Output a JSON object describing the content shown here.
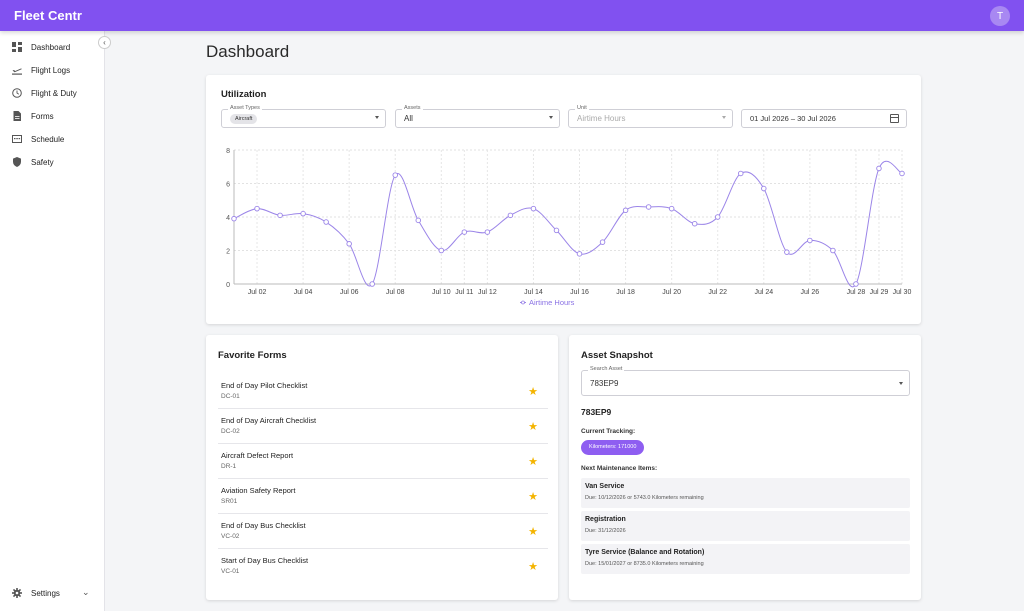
{
  "app": {
    "title": "Fleet Centr",
    "user_initial": "T"
  },
  "sidebar": {
    "items": [
      {
        "label": "Dashboard",
        "icon": "dashboard-icon"
      },
      {
        "label": "Flight Logs",
        "icon": "flight-takeoff-icon"
      },
      {
        "label": "Flight & Duty",
        "icon": "clock-icon"
      },
      {
        "label": "Forms",
        "icon": "document-icon"
      },
      {
        "label": "Schedule",
        "icon": "calendar-week-icon"
      },
      {
        "label": "Safety",
        "icon": "shield-icon"
      }
    ],
    "settings_label": "Settings",
    "collapse_symbol": "‹",
    "settings_chevron": "⌄"
  },
  "page": {
    "title": "Dashboard"
  },
  "utilization": {
    "title": "Utilization",
    "asset_types": {
      "label": "Asset Types",
      "chip": "Aircraft"
    },
    "assets": {
      "label": "Assets",
      "value": "All"
    },
    "unit": {
      "label": "Unit",
      "value": "Airtime Hours"
    },
    "date_range": "01 Jul 2026 – 30 Jul 2026"
  },
  "chart_data": {
    "type": "line",
    "x": [
      1,
      2,
      3,
      4,
      5,
      6,
      7,
      8,
      9,
      10,
      11,
      12,
      13,
      14,
      15,
      16,
      17,
      18,
      19,
      20,
      21,
      22,
      23,
      24,
      25,
      26,
      27,
      28,
      29,
      30
    ],
    "series": [
      {
        "name": "Airtime Hours",
        "values": [
          3.9,
          4.5,
          4.1,
          4.2,
          3.7,
          2.4,
          0,
          6.5,
          3.8,
          2.0,
          3.1,
          3.1,
          4.1,
          4.5,
          3.2,
          1.8,
          2.5,
          4.4,
          4.6,
          4.5,
          3.6,
          4.0,
          6.6,
          5.7,
          1.9,
          2.6,
          2.0,
          0,
          6.9,
          6.6
        ]
      }
    ],
    "tick_labels": [
      {
        "x": 2,
        "label": "Jul 02"
      },
      {
        "x": 4,
        "label": "Jul 04"
      },
      {
        "x": 6,
        "label": "Jul 06"
      },
      {
        "x": 8,
        "label": "Jul 08"
      },
      {
        "x": 10,
        "label": "Jul 10"
      },
      {
        "x": 11,
        "label": "Jul 11"
      },
      {
        "x": 12,
        "label": "Jul 12"
      },
      {
        "x": 14,
        "label": "Jul 14"
      },
      {
        "x": 16,
        "label": "Jul 16"
      },
      {
        "x": 18,
        "label": "Jul 18"
      },
      {
        "x": 20,
        "label": "Jul 20"
      },
      {
        "x": 22,
        "label": "Jul 22"
      },
      {
        "x": 24,
        "label": "Jul 24"
      },
      {
        "x": 26,
        "label": "Jul 26"
      },
      {
        "x": 28,
        "label": "Jul 28"
      },
      {
        "x": 29,
        "label": "Jul 29"
      },
      {
        "x": 30,
        "label": "Jul 30"
      }
    ],
    "yticks": [
      0,
      2,
      4,
      6,
      8
    ],
    "ylim": [
      0,
      8
    ],
    "xlim": [
      1,
      30
    ],
    "grid": true,
    "legend": "bottom-center",
    "line_color": "#9b85e8"
  },
  "favorite_forms": {
    "title": "Favorite Forms",
    "items": [
      {
        "name": "End of Day Pilot Checklist",
        "code": "DC-01"
      },
      {
        "name": "End of Day Aircraft Checklist",
        "code": "DC-02"
      },
      {
        "name": "Aircraft Defect Report",
        "code": "DR-1"
      },
      {
        "name": "Aviation Safety Report",
        "code": "SR01"
      },
      {
        "name": "End of Day Bus Checklist",
        "code": "VC-02"
      },
      {
        "name": "Start of Day Bus Checklist",
        "code": "VC-01"
      }
    ],
    "star": "★"
  },
  "asset_snapshot": {
    "title": "Asset Snapshot",
    "search_label": "Search Asset",
    "search_value": "783EP9",
    "asset_id": "783EP9",
    "current_tracking_label": "Current Tracking:",
    "tracking_chip": "Kilometers: 171000",
    "next_maintenance_label": "Next Maintenance Items:",
    "maintenance_items": [
      {
        "name": "Van Service",
        "due": "Due: 10/12/2026 or 5743.0 Kilometers remaining"
      },
      {
        "name": "Registration",
        "due": "Due: 31/12/2026"
      },
      {
        "name": "Tyre Service (Balance and Rotation)",
        "due": "Due: 15/01/2027 or 8735.0 Kilometers remaining"
      }
    ]
  },
  "colors": {
    "accent": "#8151f0",
    "star": "#f4b400",
    "chip": "#8e5ef1"
  }
}
